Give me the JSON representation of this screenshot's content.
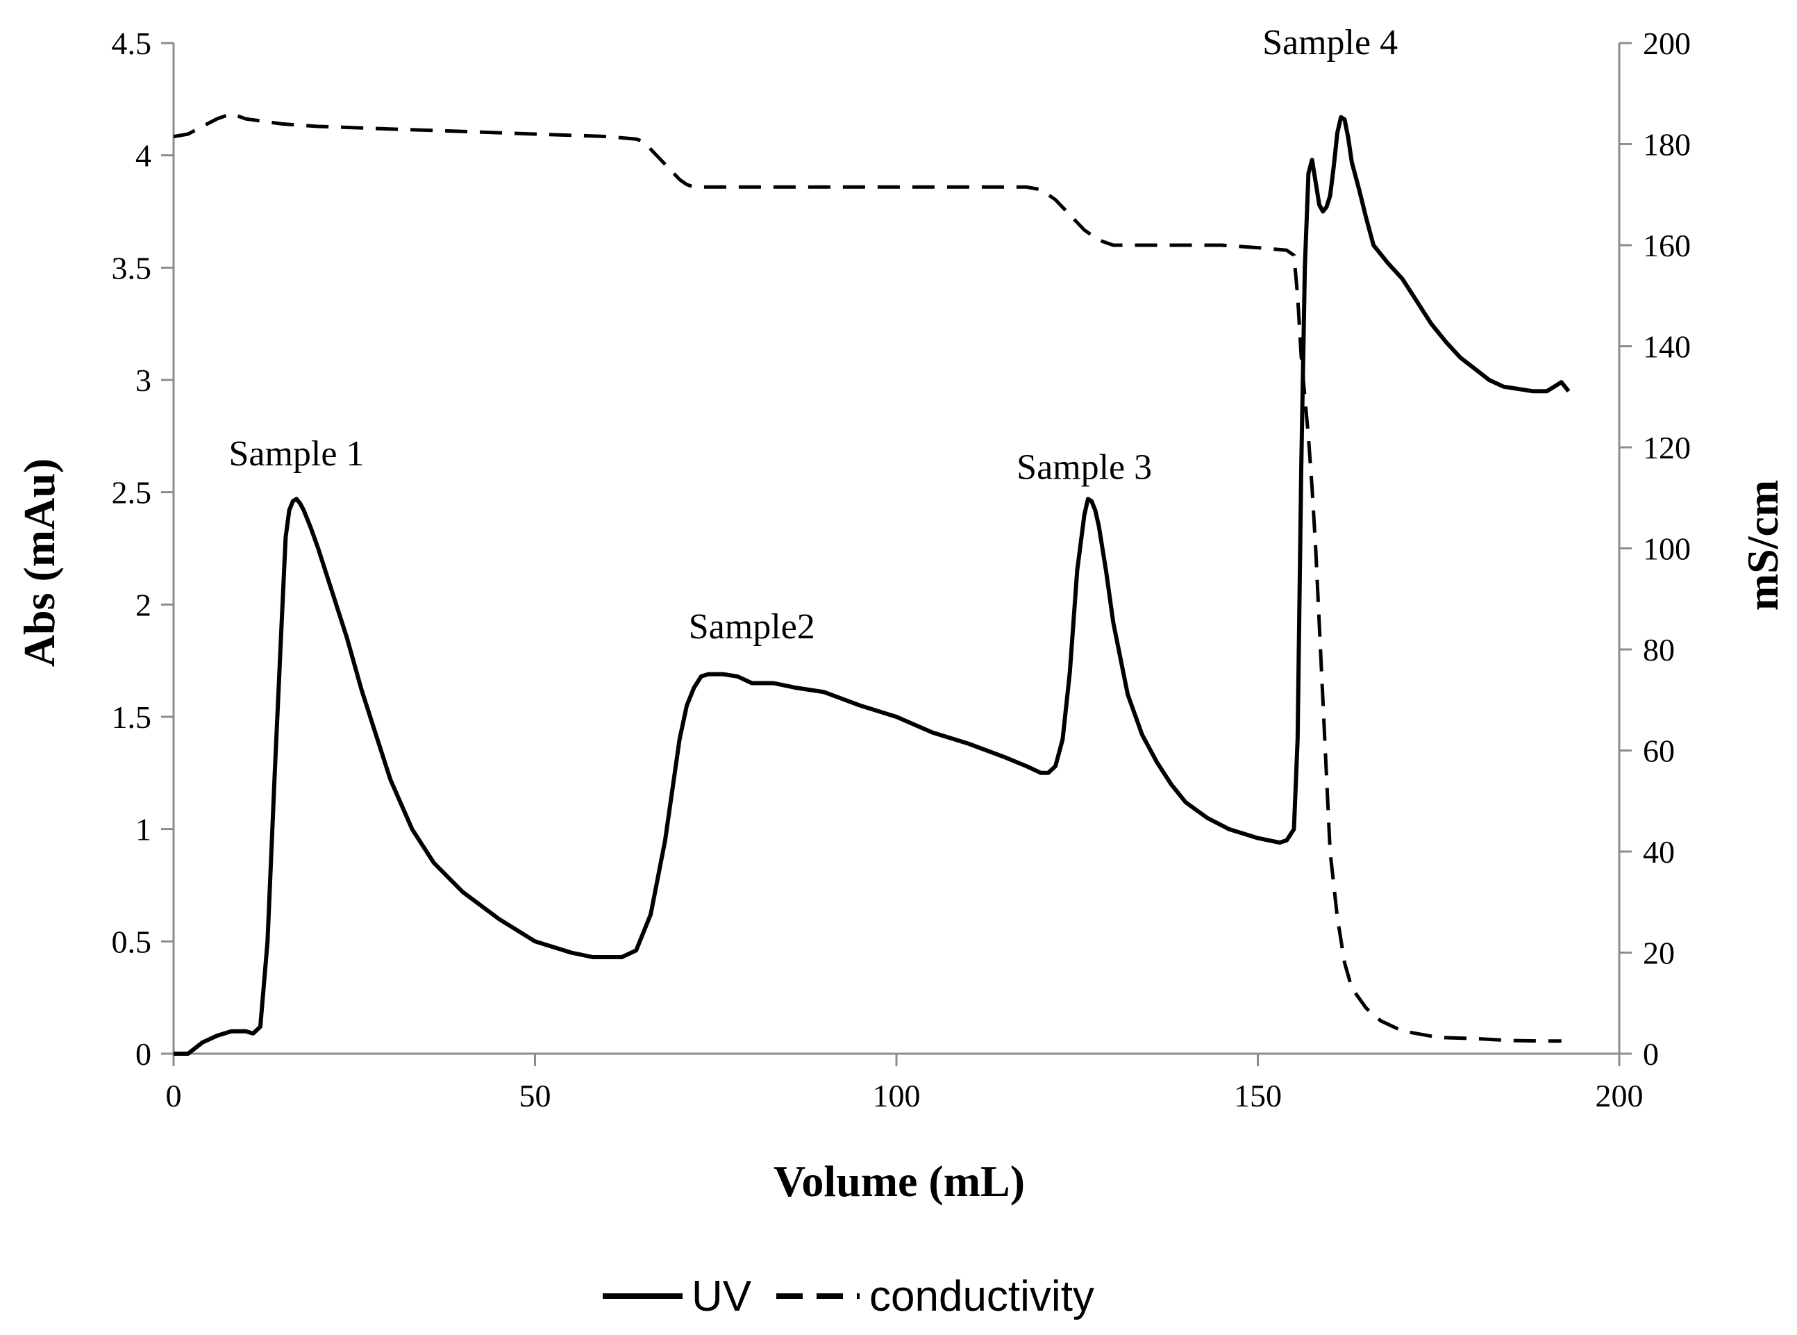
{
  "chart_data": {
    "type": "line",
    "title": "",
    "xlabel": "Volume (mL)",
    "ylabel": "Abs (mAu)",
    "y2label": "mS/cm",
    "xlim": [
      0,
      200
    ],
    "ylim": [
      0,
      4.5
    ],
    "y2lim": [
      0,
      200
    ],
    "x_ticks": [
      0,
      50,
      100,
      150,
      200
    ],
    "x_tick_labels": [
      "0",
      "50",
      "100",
      "150",
      "200"
    ],
    "y_ticks": [
      0,
      0.5,
      1,
      1.5,
      2,
      2.5,
      3,
      3.5,
      4,
      4.5
    ],
    "y_tick_labels": [
      "0",
      "0.5",
      "1",
      "1.5",
      "2",
      "2.5",
      "3",
      "3.5",
      "4",
      "4.5"
    ],
    "y2_ticks": [
      0,
      20,
      40,
      60,
      80,
      100,
      120,
      140,
      160,
      180,
      200
    ],
    "y2_tick_labels": [
      "0",
      "20",
      "40",
      "60",
      "80",
      "100",
      "120",
      "140",
      "160",
      "180",
      "200"
    ],
    "grid": false,
    "legend_position": "bottom",
    "series": [
      {
        "name": "UV",
        "axis": "left",
        "style": "solid",
        "x": [
          0,
          2,
          4,
          6,
          8,
          10,
          11,
          12,
          13,
          14,
          15,
          15.5,
          16,
          16.5,
          17,
          17.5,
          18,
          19,
          20,
          22,
          24,
          26,
          28,
          30,
          33,
          36,
          40,
          45,
          50,
          55,
          58,
          60,
          62,
          64,
          66,
          68,
          70,
          71,
          72,
          73,
          74,
          75,
          76,
          78,
          80,
          83,
          86,
          90,
          95,
          100,
          105,
          110,
          115,
          118,
          120,
          121,
          122,
          123,
          124,
          125,
          126,
          126.5,
          127,
          127.5,
          128,
          129,
          130,
          132,
          134,
          136,
          138,
          140,
          143,
          146,
          150,
          153,
          154,
          155,
          155.5,
          156,
          156.5,
          157,
          157.5,
          158,
          158.5,
          159,
          159.5,
          160,
          160.5,
          161,
          161.5,
          162,
          162.5,
          163,
          164,
          165,
          166,
          168,
          170,
          172,
          174,
          176,
          178,
          180,
          182,
          184,
          186,
          188,
          190,
          191,
          192,
          193
        ],
        "values": [
          0,
          0,
          0.05,
          0.08,
          0.1,
          0.1,
          0.09,
          0.12,
          0.5,
          1.25,
          1.95,
          2.3,
          2.42,
          2.46,
          2.47,
          2.45,
          2.42,
          2.34,
          2.25,
          2.05,
          1.85,
          1.62,
          1.42,
          1.22,
          1.0,
          0.85,
          0.72,
          0.6,
          0.5,
          0.45,
          0.43,
          0.43,
          0.43,
          0.46,
          0.62,
          0.95,
          1.4,
          1.55,
          1.63,
          1.68,
          1.69,
          1.69,
          1.69,
          1.68,
          1.65,
          1.65,
          1.63,
          1.61,
          1.55,
          1.5,
          1.43,
          1.38,
          1.32,
          1.28,
          1.25,
          1.25,
          1.28,
          1.4,
          1.7,
          2.15,
          2.4,
          2.47,
          2.46,
          2.42,
          2.35,
          2.15,
          1.92,
          1.6,
          1.42,
          1.3,
          1.2,
          1.12,
          1.05,
          1.0,
          0.96,
          0.94,
          0.95,
          1.0,
          1.4,
          2.6,
          3.5,
          3.92,
          3.98,
          3.88,
          3.78,
          3.75,
          3.77,
          3.82,
          3.95,
          4.1,
          4.17,
          4.16,
          4.08,
          3.97,
          3.85,
          3.72,
          3.6,
          3.52,
          3.45,
          3.35,
          3.25,
          3.17,
          3.1,
          3.05,
          3.0,
          2.97,
          2.96,
          2.95,
          2.95,
          2.97,
          2.99,
          2.95
        ]
      },
      {
        "name": "conductivity",
        "axis": "right",
        "style": "dashed",
        "x": [
          0,
          2,
          4,
          6,
          8,
          10,
          15,
          20,
          30,
          40,
          50,
          60,
          64,
          65,
          66,
          67,
          68,
          69,
          70,
          71,
          72,
          73,
          80,
          90,
          100,
          110,
          118,
          120,
          121,
          122,
          123,
          124,
          125,
          126,
          127,
          128,
          130,
          135,
          140,
          145,
          150,
          154,
          155,
          155.5,
          156,
          156.5,
          157,
          157.5,
          158,
          158.5,
          159,
          159.5,
          160,
          161,
          162,
          163,
          165,
          167,
          170,
          175,
          180,
          185,
          190,
          192
        ],
        "values": [
          181.5,
          182,
          183.5,
          185,
          186,
          185,
          184,
          183.5,
          183,
          182.5,
          182,
          181.5,
          181,
          180.5,
          179,
          177.5,
          176,
          174.5,
          173,
          172,
          171.5,
          171.5,
          171.5,
          171.5,
          171.5,
          171.5,
          171.5,
          171,
          170,
          169,
          167.5,
          166,
          164.5,
          163,
          162,
          161,
          160,
          160,
          160,
          160,
          159.5,
          159,
          158,
          150,
          138,
          130,
          122,
          112,
          100,
          85,
          70,
          55,
          40,
          27,
          18,
          13,
          9,
          6.5,
          4.5,
          3.2,
          3.0,
          2.6,
          2.5,
          2.5
        ]
      }
    ],
    "annotations": [
      {
        "text": "Sample 1",
        "x": 17,
        "y": 2.62
      },
      {
        "text": "Sample2",
        "x": 80,
        "y": 1.85
      },
      {
        "text": "Sample 3",
        "x": 126,
        "y": 2.56
      },
      {
        "text": "Sample 4",
        "x": 160,
        "y": 4.45
      }
    ],
    "legend": [
      {
        "label": "UV",
        "style": "solid"
      },
      {
        "label": "conductivity",
        "style": "dashed"
      }
    ]
  }
}
